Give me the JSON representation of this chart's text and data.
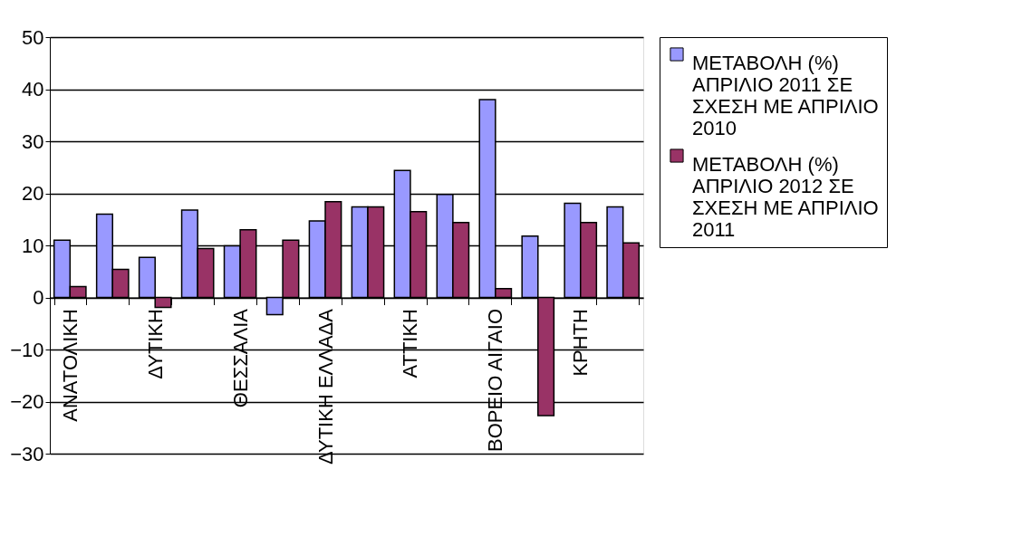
{
  "chart_data": {
    "type": "bar",
    "categories": [
      "ΑΝΑΤΟΛΙΚΗ",
      null,
      "ΔΥΤΙΚΗ",
      null,
      "ΘΕΣΣΑΛΙΑ",
      null,
      "ΔΥΤΙΚΗ ΕΛΛΑΔΑ",
      null,
      "ΑΤΤΙΚΗ",
      null,
      "ΒΟΡΕΙΟ ΑΙΓΑΙΟ",
      null,
      "ΚΡΗΤΗ",
      null
    ],
    "series": [
      {
        "name": "ΜΕΤΑΒΟΛΗ (%) ΑΠΡΙΛΙΟ 2011 ΣΕ ΣΧΕΣΗ ΜΕ ΑΠΡΙΛΙΟ 2010",
        "color": "#9999ff",
        "values": [
          11.0,
          16.0,
          7.7,
          16.8,
          9.9,
          -3.3,
          14.7,
          17.4,
          24.4,
          19.8,
          38.0,
          11.8,
          18.1,
          17.4
        ]
      },
      {
        "name": "ΜΕΤΑΒΟΛΗ (%) ΑΠΡΙΛΙΟ 2012 ΣΕ ΣΧΕΣΗ ΜΕ ΑΠΡΙΛΙΟ 2011",
        "color": "#993366",
        "values": [
          2.1,
          5.4,
          -1.9,
          9.4,
          13.0,
          11.0,
          18.4,
          17.4,
          16.5,
          14.4,
          1.7,
          -22.7,
          14.4,
          10.5
        ]
      }
    ],
    "ylim": [
      -30,
      50
    ],
    "yticks": [
      -30,
      -20,
      -10,
      0,
      10,
      20,
      30,
      40,
      50
    ],
    "grid": "y",
    "legend": "right"
  }
}
